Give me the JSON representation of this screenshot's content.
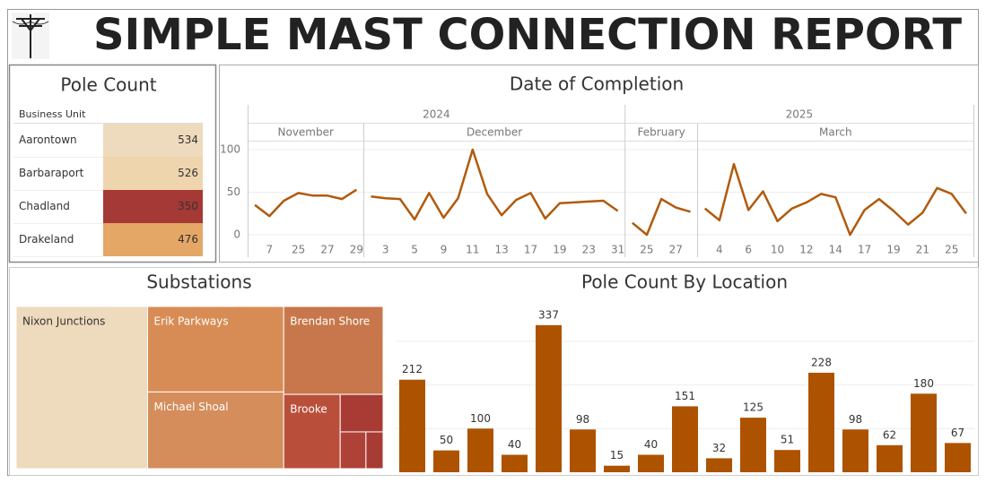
{
  "header": {
    "title": "SIMPLE MAST CONNECTION REPORT"
  },
  "table": {
    "title": "Pole Count",
    "column": "Business Unit",
    "rows": [
      {
        "label": "Aarontown",
        "value": 534,
        "color": "#eedabc"
      },
      {
        "label": "Barbaraport",
        "value": 526,
        "color": "#eed5ae"
      },
      {
        "label": "Chadland",
        "value": 350,
        "color": "#a53935"
      },
      {
        "label": "Drakeland",
        "value": 476,
        "color": "#e4a765"
      }
    ]
  },
  "chart_data": [
    {
      "type": "line",
      "title": "Date of Completion",
      "color": "#b15a0c",
      "ylim": [
        -5,
        110
      ],
      "yticks": [
        0,
        50,
        100
      ],
      "grid": true,
      "years": [
        {
          "label": "2024",
          "months": [
            {
              "label": "November",
              "categories": [
                null,
                "7",
                null,
                "25",
                null,
                "27",
                null,
                "29"
              ],
              "values": [
                35,
                22,
                40,
                49,
                46,
                46,
                42,
                53
              ]
            },
            {
              "label": "December",
              "categories": [
                null,
                "3",
                null,
                "5",
                null,
                "9",
                null,
                "11",
                null,
                "13",
                null,
                "17",
                null,
                "19",
                null,
                "23",
                null,
                "31"
              ],
              "values": [
                45,
                43,
                42,
                18,
                49,
                20,
                43,
                100,
                48,
                23,
                41,
                49,
                19,
                37,
                38,
                39,
                40,
                28
              ]
            }
          ]
        },
        {
          "label": "2025",
          "months": [
            {
              "label": "February",
              "categories": [
                null,
                "25",
                null,
                "27",
                null
              ],
              "values": [
                14,
                0,
                42,
                32,
                27
              ]
            },
            {
              "label": "March",
              "categories": [
                null,
                "4",
                null,
                "6",
                null,
                "10",
                null,
                "12",
                null,
                "14",
                null,
                "17",
                null,
                "19",
                null,
                "21",
                null,
                "25",
                null
              ],
              "values": [
                31,
                17,
                83,
                29,
                51,
                16,
                31,
                38,
                48,
                44,
                0,
                29,
                42,
                28,
                12,
                26,
                55,
                48,
                25
              ]
            }
          ]
        }
      ]
    },
    {
      "type": "treemap",
      "title": "Substations",
      "items": [
        {
          "name": "Nixon Junctions",
          "value": 676,
          "color": "#eedabc"
        },
        {
          "name": "Erik Parkways",
          "value": 369,
          "color": "#d88c55"
        },
        {
          "name": "Michael Shoal",
          "value": 331,
          "color": "#d48d5b"
        },
        {
          "name": "Brendan Shore",
          "value": 277,
          "color": "#c7774b"
        },
        {
          "name": "Brooke",
          "value": 133,
          "color": "#b94f3a"
        },
        {
          "name": null,
          "value": 51,
          "color": "#a83b33"
        },
        {
          "name": null,
          "value": 30,
          "color": "#ae4238"
        },
        {
          "name": null,
          "value": 20,
          "color": "#a83b33"
        }
      ]
    },
    {
      "type": "bar",
      "title": "Pole Count By Location",
      "color": "#ad5300",
      "ylim": [
        0,
        350
      ],
      "gridlines": [
        100,
        200,
        300
      ],
      "values": [
        212,
        50,
        100,
        40,
        337,
        98,
        15,
        40,
        151,
        32,
        125,
        51,
        228,
        98,
        62,
        180,
        67
      ]
    }
  ]
}
